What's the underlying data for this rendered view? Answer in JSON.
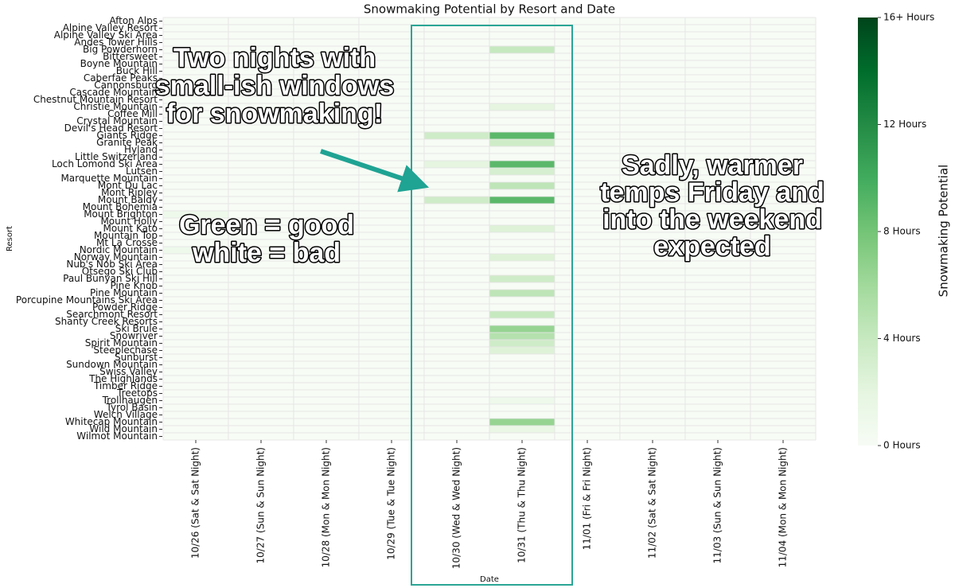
{
  "chart_data": {
    "type": "heatmap",
    "title": "Snowmaking Potential by Resort and Date",
    "xlabel": "Date",
    "ylabel": "Resort",
    "colormap": "Greens",
    "categories": [
      "10/26 (Sat & Sat Night)",
      "10/27 (Sun & Sun Night)",
      "10/28 (Mon & Mon Night)",
      "10/29 (Tue & Tue Night)",
      "10/30 (Wed & Wed Night)",
      "10/31 (Thu & Thu Night)",
      "11/01 (Fri & Fri Night)",
      "11/02 (Sat & Sat Night)",
      "11/03 (Sun & Sun Night)",
      "11/04 (Mon & Mon Night)"
    ],
    "rows": [
      "Afton Alps",
      "Alpine Valley Resort",
      "Alpine Valley Ski Area",
      "Andes Tower Hills",
      "Big Powderhorn",
      "Bittersweet",
      "Boyne Mountain",
      "Buck Hill",
      "Caberfae Peaks",
      "Cannonsburg",
      "Cascade Mountain",
      "Chestnut Mountain Resort",
      "Christie Mountain",
      "Coffee Mill",
      "Crystal Mountain",
      "Devil's Head Resort",
      "Giants Ridge",
      "Granite Peak",
      "Hyland",
      "Little Switzerland",
      "Loch Lomond Ski Area",
      "Lutsen",
      "Marquette Mountain",
      "Mont Du Lac",
      "Mont Ripley",
      "Mount Baldy",
      "Mount Bohemia",
      "Mount Brighton",
      "Mount Holly",
      "Mount Kato",
      "Mountain Top",
      "Mt La Crosse",
      "Nordic Mountain",
      "Norway Mountain",
      "Nub's Nob Ski Area",
      "Otsego Ski Club",
      "Paul Bunyan Ski Hill",
      "Pine Knob",
      "Pine Mountain",
      "Porcupine Mountains Ski Area",
      "Powder Ridge",
      "Searchmont Resort",
      "Shanty Creek Resorts",
      "Ski Brule",
      "Snowriver",
      "Spirit Mountain",
      "Steeplechase",
      "Sunburst",
      "Sundown Mountain",
      "Swiss Valley",
      "The Highlands",
      "Timber Ridge",
      "Treetops",
      "Trollhaugen",
      "Tyrol Basin",
      "Welch Village",
      "Whitecap Mountain",
      "Wild Mountain",
      "Wilmot Mountain"
    ],
    "values": [
      [
        0,
        0,
        0,
        0,
        0,
        0,
        0,
        0,
        0,
        0
      ],
      [
        0,
        0,
        0,
        0,
        0,
        0,
        0,
        0,
        0,
        0
      ],
      [
        0,
        0,
        0,
        0,
        0,
        0,
        0,
        0,
        0,
        0
      ],
      [
        0,
        0,
        0,
        0,
        0,
        0,
        0,
        0,
        0,
        0
      ],
      [
        0,
        0,
        0,
        0,
        0,
        4,
        0,
        0,
        0,
        0
      ],
      [
        0,
        0,
        0,
        0,
        0,
        0,
        0,
        0,
        0,
        0
      ],
      [
        0,
        0,
        0,
        0,
        0,
        0,
        0,
        0,
        0,
        0
      ],
      [
        0,
        0,
        0,
        0,
        0,
        0,
        0,
        0,
        0,
        0
      ],
      [
        0,
        0,
        0,
        0,
        0,
        0,
        0,
        0,
        0,
        0
      ],
      [
        0,
        0,
        0,
        0,
        0,
        0,
        0,
        0,
        0,
        0
      ],
      [
        0,
        0,
        0,
        0,
        0,
        0,
        0,
        0,
        0,
        0
      ],
      [
        0,
        0,
        0,
        0,
        0,
        0,
        0,
        0,
        0,
        0
      ],
      [
        0,
        0,
        0,
        0,
        0,
        2,
        0,
        0,
        0,
        0
      ],
      [
        0,
        0,
        0,
        0,
        0,
        0,
        0,
        0,
        0,
        0
      ],
      [
        0,
        0,
        0,
        0,
        0,
        0,
        0,
        0,
        0,
        0
      ],
      [
        0,
        0,
        0,
        0,
        0,
        0,
        0,
        0,
        0,
        0
      ],
      [
        0,
        0,
        0,
        0,
        3.5,
        9,
        0,
        0,
        0,
        0
      ],
      [
        0,
        0,
        0,
        0,
        0,
        3.5,
        0,
        0,
        0,
        0
      ],
      [
        0,
        0,
        0,
        0,
        0,
        0,
        0,
        0,
        0,
        0
      ],
      [
        0,
        0,
        0,
        0,
        0,
        0,
        0,
        0,
        0,
        0
      ],
      [
        0,
        0,
        0,
        0,
        2,
        9,
        0,
        0,
        0,
        0
      ],
      [
        0,
        0,
        0,
        0,
        0,
        3,
        0,
        0,
        0,
        0
      ],
      [
        0,
        0,
        0,
        0,
        0,
        0,
        0,
        0,
        0,
        0
      ],
      [
        0,
        0,
        0,
        0,
        0,
        4.5,
        0,
        0,
        0,
        0
      ],
      [
        0,
        0,
        0,
        0,
        0,
        0,
        0,
        0,
        0,
        0
      ],
      [
        0,
        0,
        0,
        0,
        3.5,
        9,
        0,
        0,
        0,
        0
      ],
      [
        0,
        0,
        0,
        0,
        0,
        0,
        0,
        0,
        0,
        0
      ],
      [
        1,
        0,
        0,
        0,
        0,
        0,
        0,
        0,
        0,
        0
      ],
      [
        0,
        0,
        0,
        0,
        0,
        0,
        0,
        0,
        0,
        0
      ],
      [
        0,
        0,
        0,
        0,
        0,
        2.5,
        0,
        0,
        0,
        0
      ],
      [
        0,
        0,
        0,
        0,
        0,
        0,
        0,
        0,
        0,
        0
      ],
      [
        0,
        0,
        0,
        0,
        0,
        0,
        0,
        0,
        0,
        0
      ],
      [
        1,
        0,
        0,
        0,
        0,
        0,
        0,
        0,
        0,
        0
      ],
      [
        0,
        0,
        0,
        0,
        0,
        2.5,
        0,
        0,
        0,
        0
      ],
      [
        0,
        0,
        0,
        0,
        0,
        0,
        0,
        0,
        0,
        0
      ],
      [
        0,
        0,
        0,
        0,
        0,
        0,
        0,
        0,
        0,
        0
      ],
      [
        0,
        0,
        0,
        0,
        0,
        3.5,
        0,
        0,
        0,
        0
      ],
      [
        0,
        0,
        0,
        0,
        0,
        0,
        0,
        0,
        0,
        0
      ],
      [
        0,
        0,
        0,
        0,
        0,
        4.5,
        0,
        0,
        0,
        0
      ],
      [
        0,
        0,
        0,
        0,
        0,
        0,
        0,
        0,
        0,
        0
      ],
      [
        0,
        0,
        0,
        0,
        0,
        0,
        0,
        0,
        0,
        0
      ],
      [
        0,
        0,
        0,
        0,
        0,
        4,
        0,
        0,
        0,
        0
      ],
      [
        0,
        0,
        0,
        0,
        0,
        0,
        0,
        0,
        0,
        0
      ],
      [
        0,
        0,
        0,
        0,
        0,
        6.5,
        0,
        0,
        0,
        0
      ],
      [
        0,
        0,
        0,
        0,
        0,
        5,
        0,
        0,
        0,
        0
      ],
      [
        0,
        0,
        0,
        0,
        0,
        3.5,
        0,
        0,
        0,
        0
      ],
      [
        0,
        0,
        0,
        0,
        0,
        2.5,
        0,
        0,
        0,
        0
      ],
      [
        0,
        0,
        0,
        0,
        0,
        0,
        0,
        0,
        0,
        0
      ],
      [
        0,
        0,
        0,
        0,
        0,
        0,
        0,
        0,
        0,
        0
      ],
      [
        0,
        0,
        0,
        0,
        0,
        0,
        0,
        0,
        0,
        0
      ],
      [
        0,
        0,
        0,
        0,
        0,
        0,
        0,
        0,
        0,
        0
      ],
      [
        0,
        0,
        0,
        0,
        0,
        0,
        0,
        0,
        0,
        0
      ],
      [
        0,
        0,
        0,
        0,
        0,
        0,
        0,
        0,
        0,
        0
      ],
      [
        0,
        0,
        0,
        0,
        0,
        1,
        0,
        0,
        0,
        0
      ],
      [
        0,
        0,
        0,
        0,
        0,
        0,
        0,
        0,
        0,
        0
      ],
      [
        0,
        0,
        0,
        0,
        0,
        0,
        0,
        0,
        0,
        0
      ],
      [
        0,
        0,
        0,
        0,
        0,
        6.5,
        0,
        0,
        0,
        0
      ],
      [
        0,
        0,
        0,
        0,
        0,
        1.5,
        0,
        0,
        0,
        0
      ],
      [
        0,
        0,
        0,
        0,
        0,
        0,
        0,
        0,
        0,
        0
      ]
    ],
    "colorbar": {
      "label": "Snowmaking Potential",
      "lim": [
        0,
        16
      ],
      "ticks": [
        {
          "value": 0,
          "label": "0 Hours"
        },
        {
          "value": 4,
          "label": "4 Hours"
        },
        {
          "value": 8,
          "label": "8 Hours"
        },
        {
          "value": 12,
          "label": "12 Hours"
        },
        {
          "value": 16,
          "label": "16+ Hours"
        }
      ]
    },
    "annotations": [
      {
        "lines": [
          "Two nights with",
          "small-ish windows",
          "for snowmaking!"
        ]
      },
      {
        "lines": [
          "Green = good",
          "white = bad"
        ]
      },
      {
        "lines": [
          "Sadly, warmer",
          "temps Friday and",
          "into the weekend",
          "expected"
        ]
      }
    ]
  }
}
